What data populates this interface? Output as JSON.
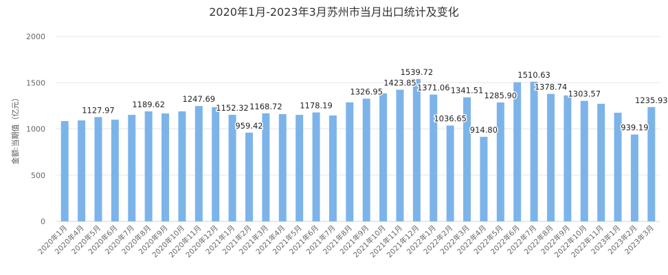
{
  "chart_data": {
    "type": "bar",
    "title": "2020年1月-2023年3月苏州市当月出口统计及变化",
    "ylabel": "金额:当期值（亿元）",
    "xlabel": "",
    "ylim": [
      0,
      2000
    ],
    "yticks": [
      0,
      500,
      1000,
      1500,
      2000
    ],
    "grid": true,
    "bar_color": "#7cb4ea",
    "categories": [
      "2020年1月",
      "2020年4月",
      "2020年5月",
      "2020年6月",
      "2020年7月",
      "2020年8月",
      "2020年9月",
      "2020年10月",
      "2020年11月",
      "2020年12月",
      "2021年1月",
      "2021年2月",
      "2021年3月",
      "2021年4月",
      "2021年5月",
      "2021年6月",
      "2021年7月",
      "2021年8月",
      "2021年9月",
      "2021年10月",
      "2021年11月",
      "2021年12月",
      "2022年1月",
      "2022年2月",
      "2022年3月",
      "2022年4月",
      "2022年5月",
      "2022年6月",
      "2022年7月",
      "2022年8月",
      "2022年9月",
      "2022年10月",
      "2022年11月",
      "2023年1月",
      "2023年2月",
      "2023年3月"
    ],
    "values": [
      1085,
      1092,
      1127.97,
      1100,
      1152,
      1189.62,
      1167,
      1190,
      1247.69,
      1235,
      1152.32,
      959.42,
      1168.72,
      1160,
      1152,
      1178.19,
      1145,
      1287,
      1326.95,
      1385,
      1423.85,
      1539.72,
      1371.06,
      1036.65,
      1341.51,
      914.8,
      1285.9,
      1505,
      1510.63,
      1378.74,
      1362,
      1303.57,
      1272,
      1175,
      939.19,
      1235.93
    ],
    "data_labels": [
      null,
      null,
      "1127.97",
      null,
      null,
      "1189.62",
      null,
      null,
      "1247.69",
      null,
      "1152.32",
      "959.42",
      "1168.72",
      null,
      null,
      "1178.19",
      null,
      null,
      "1326.95",
      null,
      "1423.85",
      "1539.72",
      "1371.06",
      "1036.65",
      "1341.51",
      "914.80",
      "1285.90",
      null,
      "1510.63",
      "1378.74",
      null,
      "1303.57",
      null,
      null,
      "939.19",
      "1235.93"
    ]
  }
}
